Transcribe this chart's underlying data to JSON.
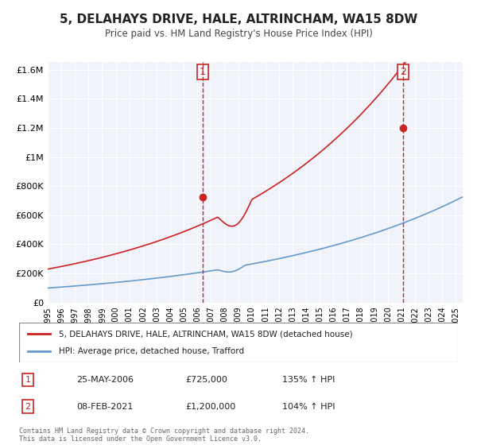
{
  "title": "5, DELAHAYS DRIVE, HALE, ALTRINCHAM, WA15 8DW",
  "subtitle": "Price paid vs. HM Land Registry's House Price Index (HPI)",
  "xlim": [
    1995.0,
    2025.5
  ],
  "ylim": [
    0,
    1650000
  ],
  "yticks": [
    0,
    200000,
    400000,
    600000,
    800000,
    1000000,
    1200000,
    1400000,
    1600000
  ],
  "ytick_labels": [
    "£0",
    "£200K",
    "£400K",
    "£600K",
    "£800K",
    "£1M",
    "£1.2M",
    "£1.4M",
    "£1.6M"
  ],
  "xtick_years": [
    1995,
    1996,
    1997,
    1998,
    1999,
    2000,
    2001,
    2002,
    2003,
    2004,
    2005,
    2006,
    2007,
    2008,
    2009,
    2010,
    2011,
    2012,
    2013,
    2014,
    2015,
    2016,
    2017,
    2018,
    2019,
    2020,
    2021,
    2022,
    2023,
    2024,
    2025
  ],
  "hpi_color": "#6699cc",
  "price_color": "#cc2222",
  "marker_color": "#cc2222",
  "vline_color": "#cc2222",
  "bg_color": "#f0f4fa",
  "legend_label_price": "5, DELAHAYS DRIVE, HALE, ALTRINCHAM, WA15 8DW (detached house)",
  "legend_label_hpi": "HPI: Average price, detached house, Trafford",
  "sale1_date": 2006.4,
  "sale1_price": 725000,
  "sale1_label": "1",
  "sale2_date": 2021.1,
  "sale2_price": 1200000,
  "sale2_label": "2",
  "footer": "Contains HM Land Registry data © Crown copyright and database right 2024.\nThis data is licensed under the Open Government Licence v3.0.",
  "table_rows": [
    [
      "1",
      "25-MAY-2006",
      "£725,000",
      "135% ↑ HPI"
    ],
    [
      "2",
      "08-FEB-2021",
      "£1,200,000",
      "104% ↑ HPI"
    ]
  ]
}
